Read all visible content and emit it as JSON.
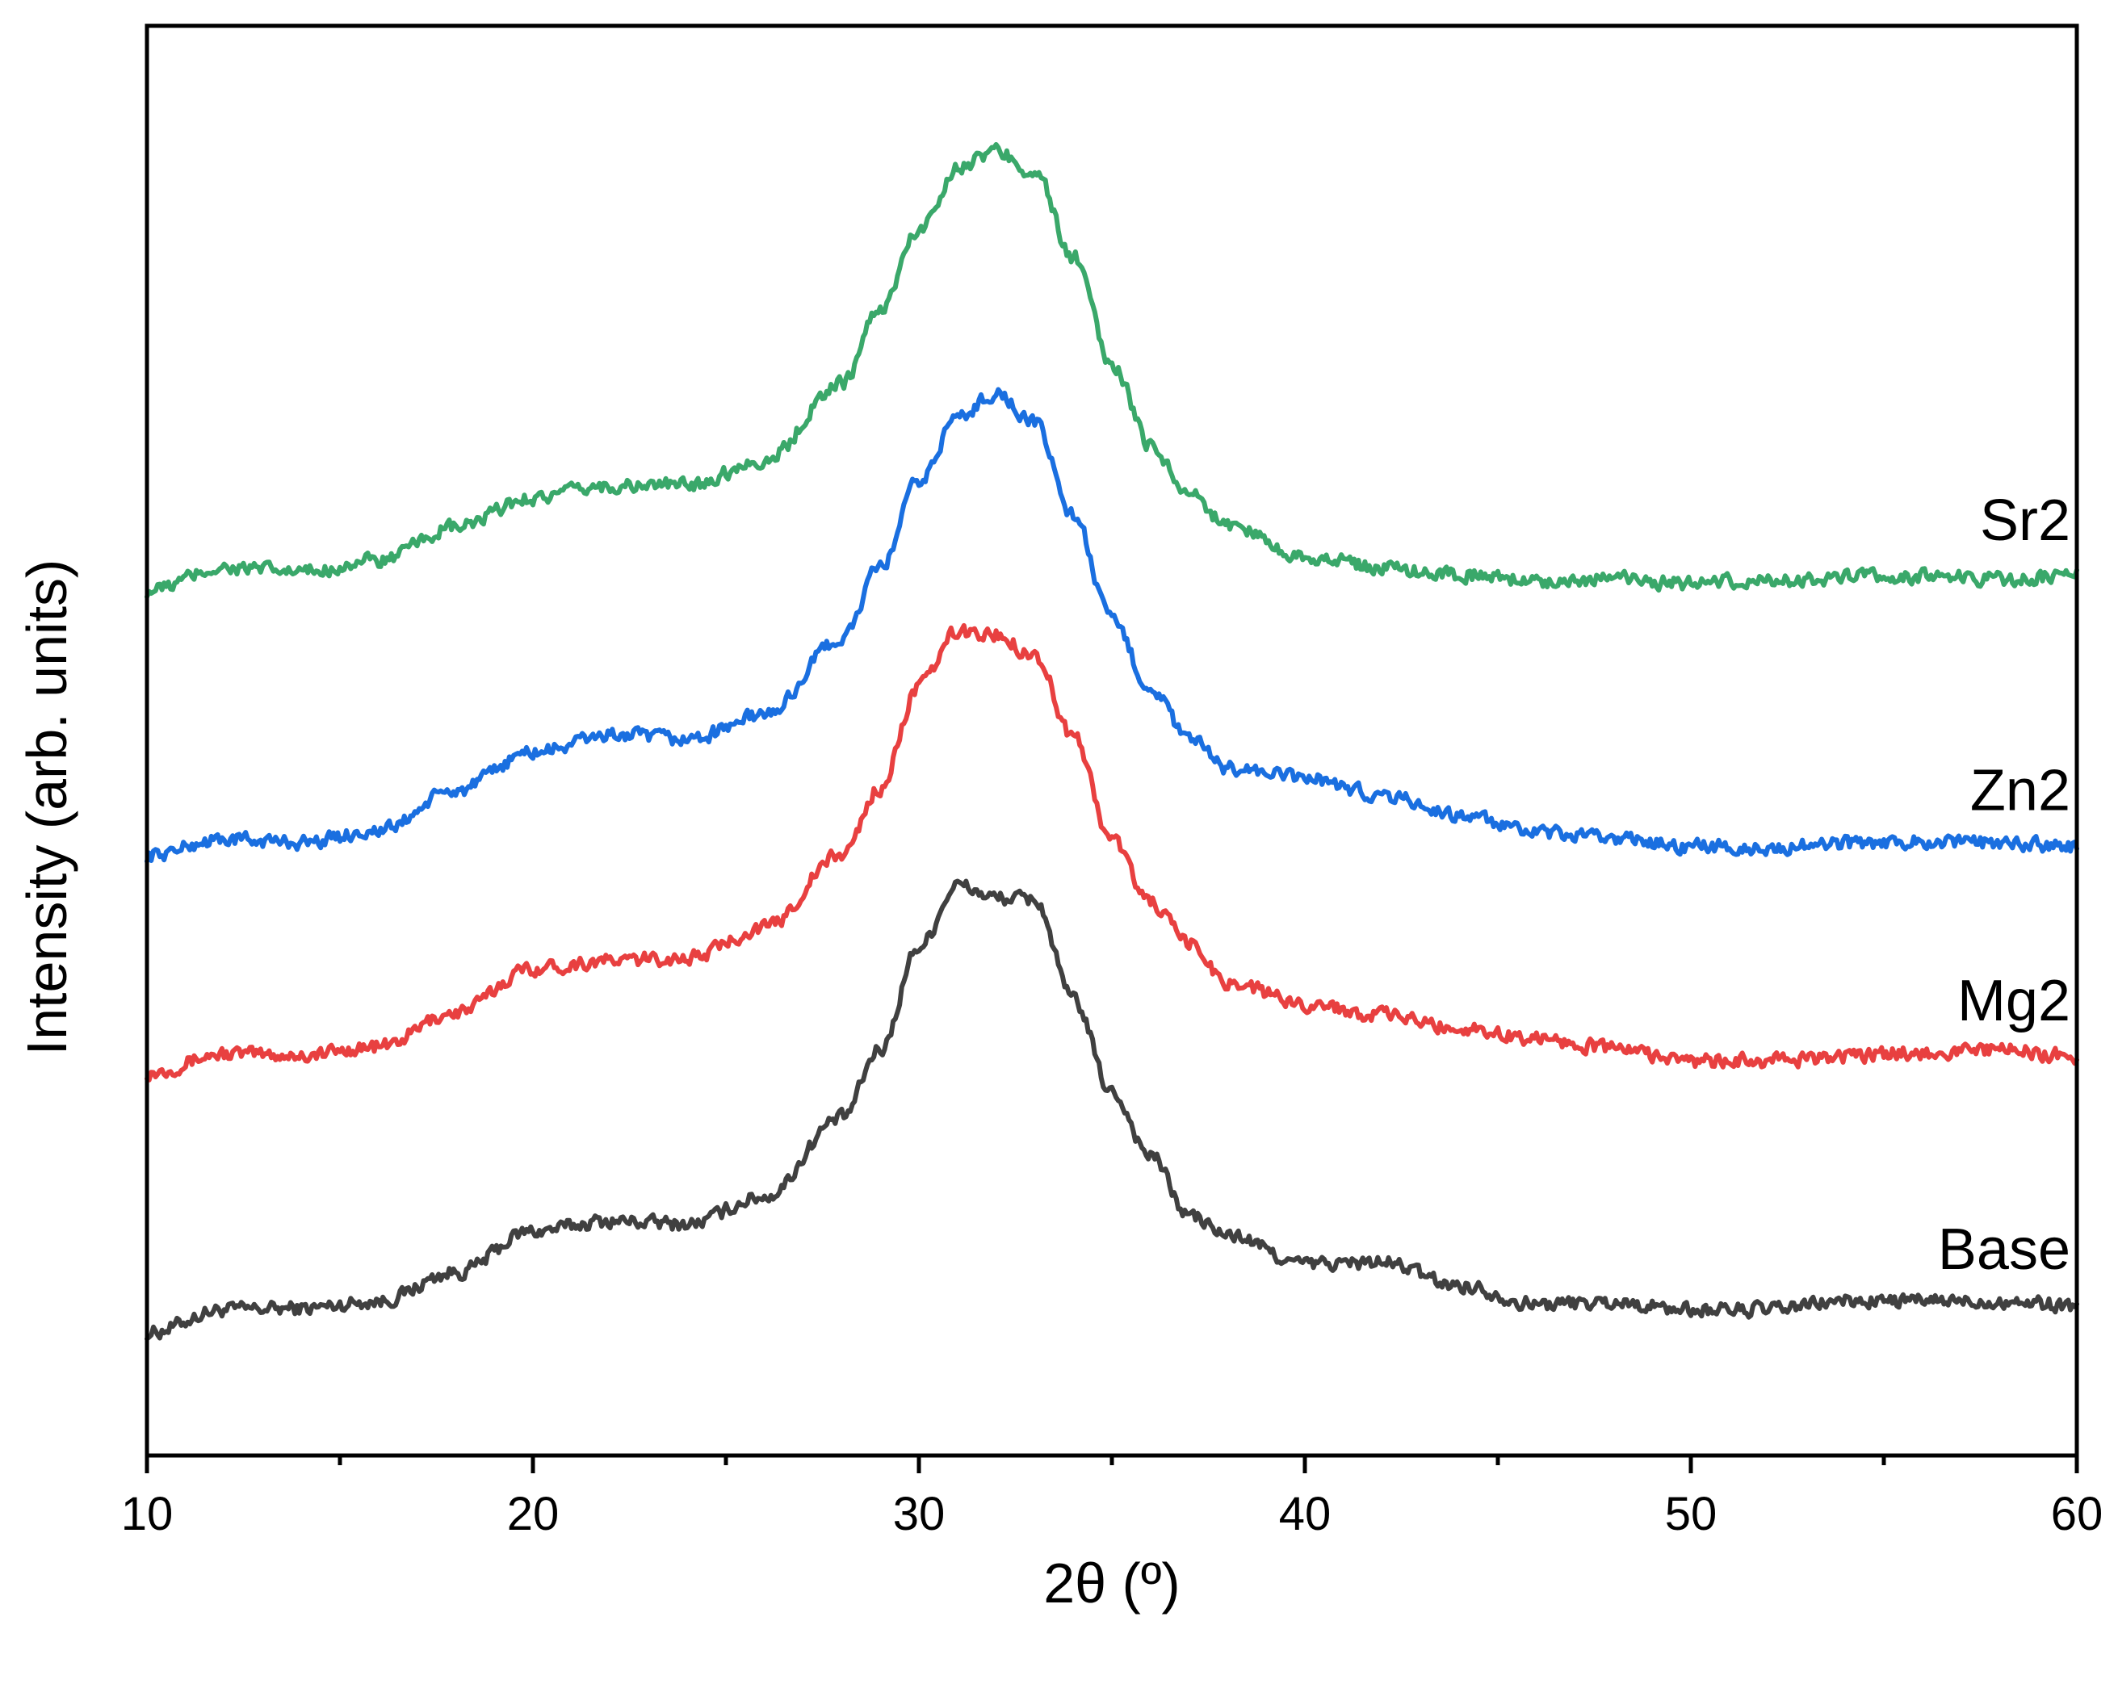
{
  "chart_data": {
    "type": "line",
    "xlabel": "2θ (º)",
    "ylabel": "Intensity (arb. units)",
    "xlim": [
      10,
      60
    ],
    "ylim": [
      0,
      100
    ],
    "x_ticks": [
      10,
      20,
      30,
      40,
      50,
      60
    ],
    "x_tick_labels": [
      "10",
      "20",
      "30",
      "40",
      "50",
      "60"
    ],
    "x_minor_ticks": [
      15,
      25,
      35,
      45,
      55
    ],
    "y_ticks_shown": false,
    "grid": false,
    "legend": "inline labels at right end of each curve",
    "series": [
      {
        "name": "Base",
        "color": "#404040",
        "x": [
          10,
          12,
          14,
          16,
          18,
          20,
          22,
          24,
          26,
          28,
          29,
          30,
          31,
          32,
          33,
          34,
          35,
          36,
          37,
          38,
          40,
          42,
          44,
          46,
          48,
          50,
          52,
          54,
          56,
          58,
          60
        ],
        "y": [
          8.6,
          10.2,
          10.3,
          10.8,
          12.8,
          15.7,
          16.4,
          16.2,
          18.1,
          23.6,
          28.4,
          35.6,
          39.9,
          39.0,
          38.9,
          31.9,
          25.4,
          21.0,
          16.8,
          15.4,
          13.4,
          13.5,
          11.9,
          10.6,
          10.7,
          10.2,
          10.2,
          10.8,
          10.8,
          10.8,
          10.5
        ]
      },
      {
        "name": "Mg2",
        "color": "#e84040",
        "x": [
          10,
          12,
          14,
          16,
          18,
          20,
          22,
          24,
          26,
          28,
          29,
          30,
          31,
          32,
          33,
          34,
          35,
          36,
          37,
          38,
          40,
          42,
          44,
          46,
          48,
          50,
          52,
          54,
          56,
          58,
          60
        ],
        "y": [
          26.8,
          28.1,
          28.0,
          28.6,
          31.0,
          34.1,
          34.6,
          34.8,
          36.9,
          42.0,
          46.7,
          53.8,
          57.6,
          57.4,
          56.0,
          50.3,
          43.1,
          38.7,
          35.8,
          33.1,
          31.6,
          30.8,
          29.9,
          29.2,
          28.5,
          27.6,
          27.6,
          27.9,
          28.2,
          28.4,
          27.9
        ]
      },
      {
        "name": "Zn2",
        "color": "#1a6fe0",
        "x": [
          10,
          12,
          14,
          16,
          18,
          20,
          22,
          24,
          26,
          28,
          29,
          30,
          31,
          32,
          33,
          34,
          35,
          36,
          37,
          38,
          40,
          42,
          44,
          46,
          48,
          50,
          52,
          54,
          56,
          58,
          60
        ],
        "y": [
          42.0,
          43.1,
          42.9,
          43.7,
          46.5,
          49.2,
          50.4,
          50.1,
          51.8,
          57.1,
          62.1,
          68.1,
          72.6,
          74.3,
          72.2,
          65.8,
          58.4,
          53.7,
          50.1,
          48.1,
          47.4,
          46.2,
          44.8,
          43.5,
          43.2,
          42.6,
          42.5,
          42.8,
          43.0,
          42.8,
          42.6
        ]
      },
      {
        "name": "Sr2",
        "color": "#3aa86a",
        "x": [
          10,
          12,
          14,
          16,
          18,
          20,
          22,
          24,
          26,
          28,
          29,
          30,
          31,
          32,
          33,
          34,
          35,
          36,
          37,
          38,
          40,
          42,
          44,
          46,
          48,
          50,
          52,
          54,
          56,
          58,
          60
        ],
        "y": [
          60.5,
          62.1,
          61.8,
          62.6,
          64.9,
          67.0,
          67.8,
          67.9,
          69.6,
          75.0,
          80.2,
          85.7,
          90.1,
          91.2,
          89.8,
          83.8,
          76.3,
          70.7,
          67.3,
          65.1,
          62.9,
          62.1,
          61.6,
          61.2,
          61.3,
          61.0,
          61.2,
          61.4,
          61.5,
          61.3,
          61.5
        ]
      }
    ]
  }
}
